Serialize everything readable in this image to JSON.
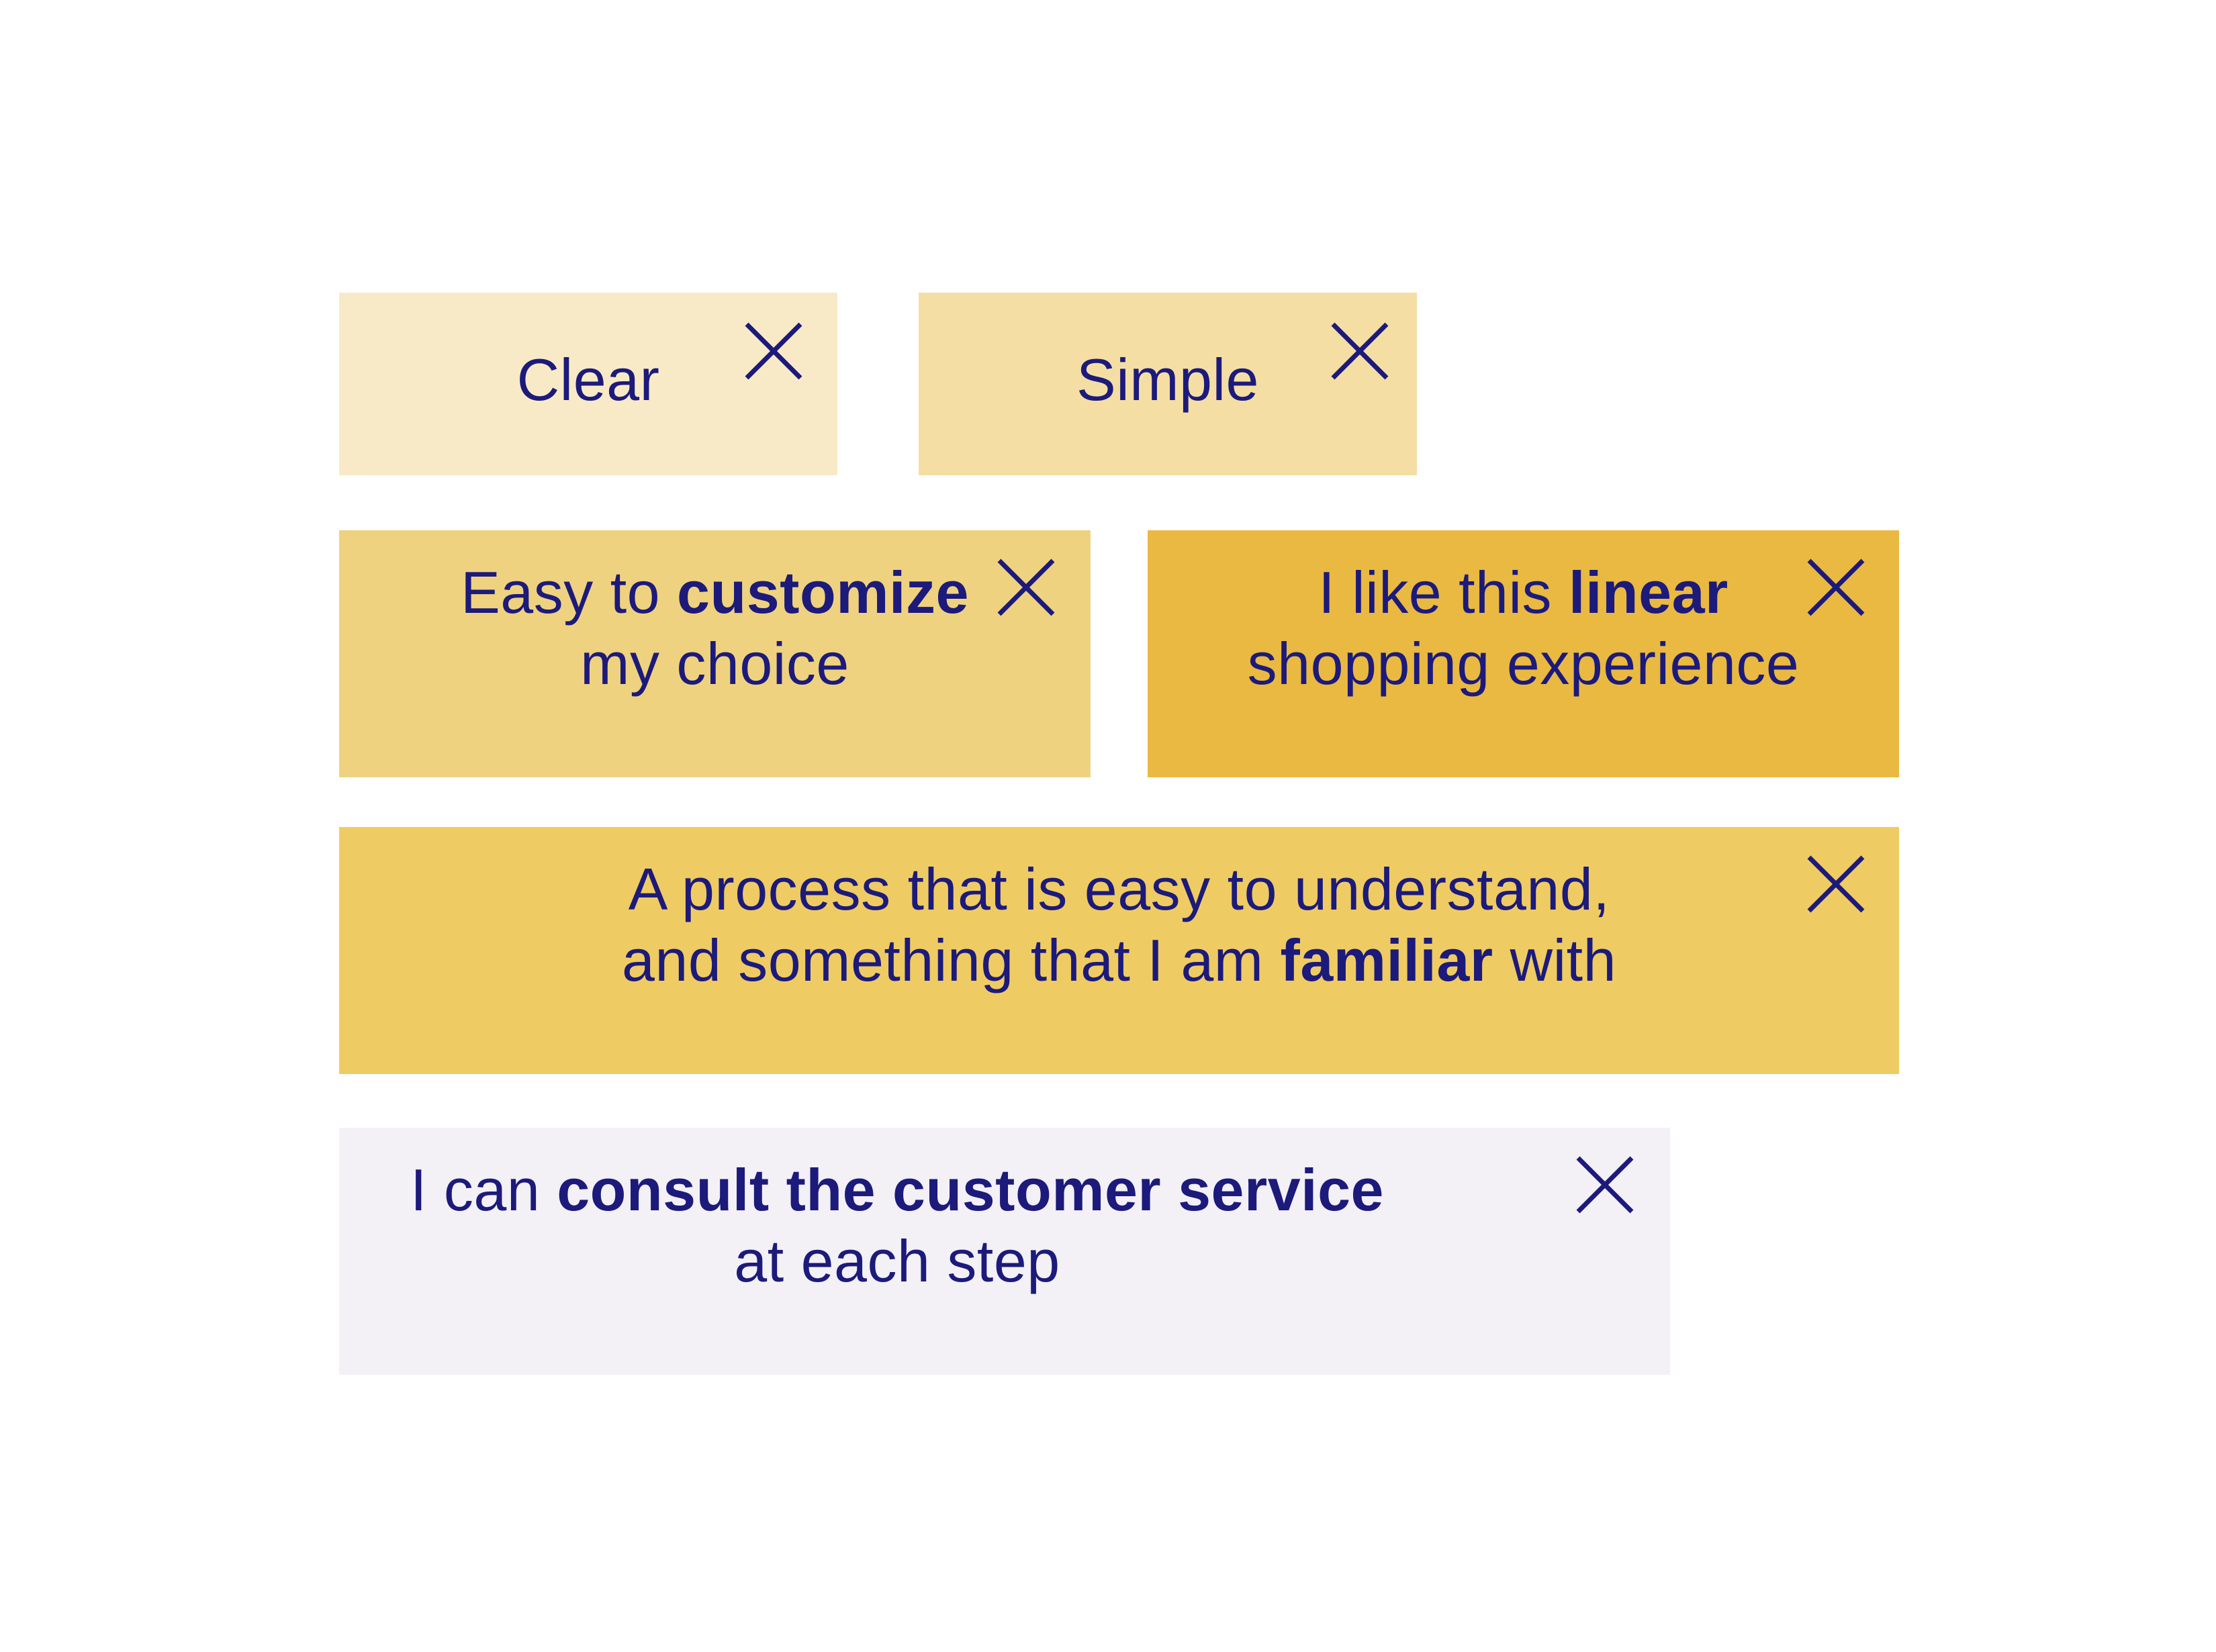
{
  "colors": {
    "text": "#1c1a7a",
    "tag_clear": "#f8eac6",
    "tag_simple": "#f4dea4",
    "tag_customize": "#efd27f",
    "tag_linear": "#e9b942",
    "tag_familiar": "#efcb63",
    "tag_consult": "#f3f0f6"
  },
  "close_icon": "close-x-icon",
  "tags": {
    "clear": {
      "text": "Clear"
    },
    "simple": {
      "text": "Simple"
    },
    "customize": {
      "line1_pre": "Easy to ",
      "line1_bold": "customize",
      "line2": "my choice"
    },
    "linear": {
      "line1_pre": "I like this ",
      "line1_bold": "linear",
      "line2": "shopping experience"
    },
    "familiar": {
      "line1": "A process that is easy to understand,",
      "line2_pre": "and something that I am ",
      "line2_bold": "familiar",
      "line2_post": " with"
    },
    "consult": {
      "line1_pre": "I can ",
      "line1_bold": "consult the customer service",
      "line2": "at each step"
    }
  }
}
